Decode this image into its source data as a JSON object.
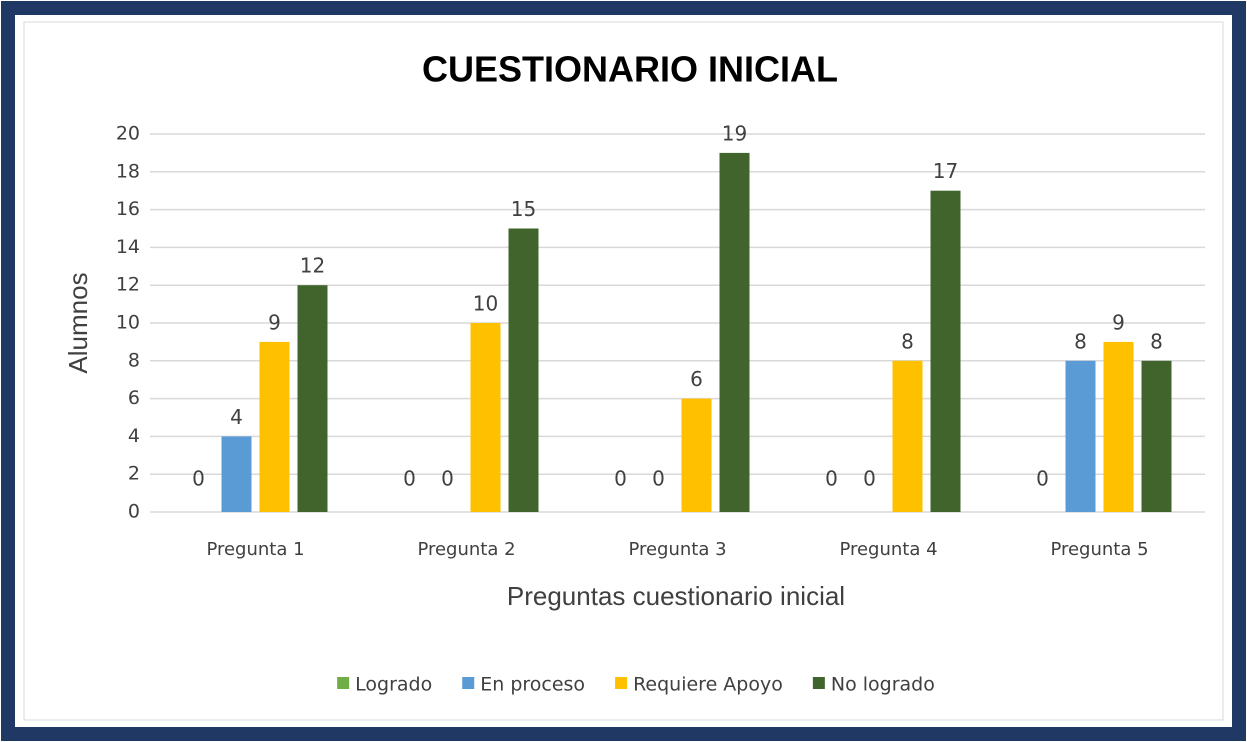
{
  "chart_data": {
    "type": "bar",
    "title": "CUESTIONARIO INICIAL",
    "x_label": "Preguntas cuestionario inicial",
    "y_label": "Alumnos",
    "categories": [
      "Pregunta 1",
      "Pregunta 2",
      "Pregunta 3",
      "Pregunta 4",
      "Pregunta 5"
    ],
    "series": [
      {
        "name": "Logrado",
        "color": "#70ad47",
        "values": [
          0,
          0,
          0,
          0,
          0
        ]
      },
      {
        "name": "En proceso",
        "color": "#5b9bd5",
        "values": [
          4,
          0,
          0,
          0,
          8
        ]
      },
      {
        "name": "Requiere Apoyo",
        "color": "#ffc000",
        "values": [
          9,
          10,
          6,
          8,
          9
        ]
      },
      {
        "name": "No logrado",
        "color": "#41642c",
        "values": [
          12,
          15,
          19,
          17,
          8
        ]
      }
    ],
    "ylim": [
      0,
      20
    ],
    "yticks": [
      0,
      2,
      4,
      6,
      8,
      10,
      12,
      14,
      16,
      18,
      20
    ],
    "grid": true,
    "legend": "bottom"
  }
}
